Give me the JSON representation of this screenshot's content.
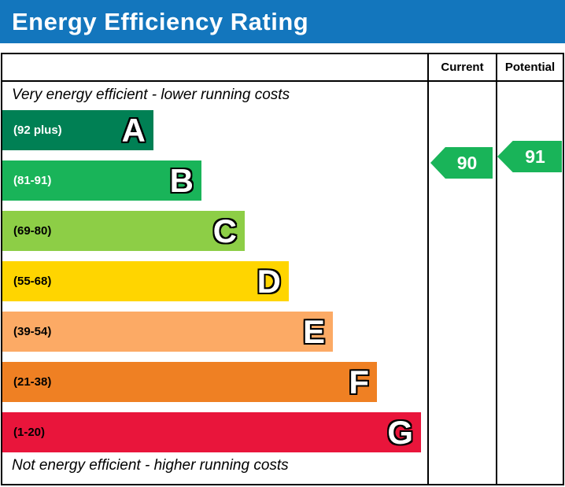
{
  "page_title": "Energy Efficiency Rating",
  "colors": {
    "header_bar": "#1376bd",
    "border": "#000000"
  },
  "chart_data": {
    "type": "bar",
    "title": "Energy Efficiency Rating",
    "column_headers": {
      "current": "Current",
      "potential": "Potential"
    },
    "annotations": {
      "top": "Very energy efficient - lower running costs",
      "bottom": "Not energy efficient - higher running costs"
    },
    "bands": [
      {
        "letter": "A",
        "range_label": "(92 plus)",
        "min": 92,
        "max": 100,
        "color": "#008054",
        "label_color": "#ffffff"
      },
      {
        "letter": "B",
        "range_label": "(81-91)",
        "min": 81,
        "max": 91,
        "color": "#19b459",
        "label_color": "#ffffff"
      },
      {
        "letter": "C",
        "range_label": "(69-80)",
        "min": 69,
        "max": 80,
        "color": "#8dce46",
        "label_color": "#000000"
      },
      {
        "letter": "D",
        "range_label": "(55-68)",
        "min": 55,
        "max": 68,
        "color": "#ffd500",
        "label_color": "#000000"
      },
      {
        "letter": "E",
        "range_label": "(39-54)",
        "min": 39,
        "max": 54,
        "color": "#fcaa65",
        "label_color": "#000000"
      },
      {
        "letter": "F",
        "range_label": "(21-38)",
        "min": 21,
        "max": 38,
        "color": "#ef8023",
        "label_color": "#000000"
      },
      {
        "letter": "G",
        "range_label": "(1-20)",
        "min": 1,
        "max": 20,
        "color": "#e9153b",
        "label_color": "#000000"
      }
    ],
    "current": {
      "value": 90,
      "band": "B",
      "arrow_color": "#19b459",
      "text_color": "#ffffff"
    },
    "potential": {
      "value": 91,
      "band": "B",
      "arrow_color": "#19b459",
      "text_color": "#ffffff"
    }
  }
}
